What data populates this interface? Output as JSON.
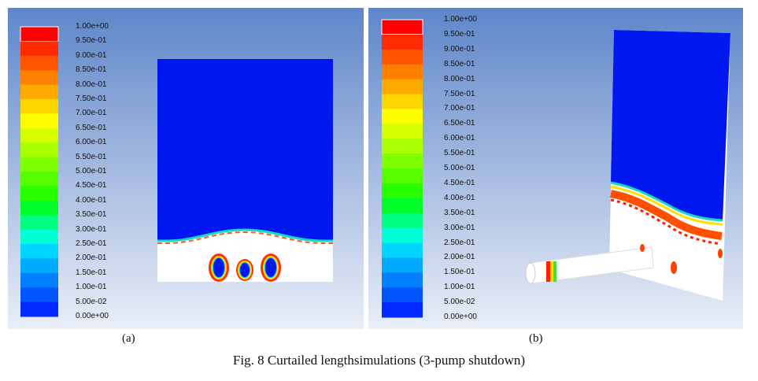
{
  "figure": {
    "caption": "Fig. 8 Curtailed lengthsimulations (3-pump shutdown)",
    "panels": [
      {
        "label": "(a)"
      },
      {
        "label": "(b)"
      }
    ]
  },
  "colorbar": {
    "ticks": [
      "1.00e+00",
      "9.50e-01",
      "9.00e-01",
      "8.50e-01",
      "8.00e-01",
      "7.50e-01",
      "7.00e-01",
      "6.50e-01",
      "6.00e-01",
      "5.50e-01",
      "5.00e-01",
      "4.50e-01",
      "4.00e-01",
      "3.50e-01",
      "3.00e-01",
      "2.50e-01",
      "2.00e-01",
      "1.50e-01",
      "1.00e-01",
      "5.00e-02",
      "0.00e+00"
    ],
    "colors": [
      "#ff0000",
      "#ff2a00",
      "#ff5500",
      "#ff8000",
      "#ffaa00",
      "#ffd500",
      "#ffff00",
      "#d5ff00",
      "#aaff00",
      "#80ff00",
      "#55ff00",
      "#2aff00",
      "#00ff2a",
      "#00ff80",
      "#00ffd5",
      "#00d5ff",
      "#00aaff",
      "#0080ff",
      "#0055ff",
      "#002aff"
    ]
  }
}
